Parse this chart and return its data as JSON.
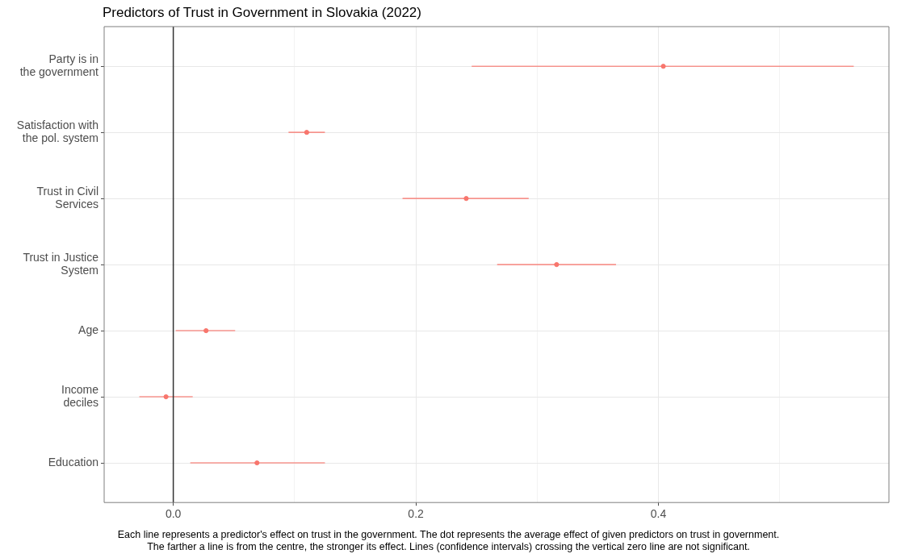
{
  "chart_data": {
    "type": "scatter",
    "title": "Predictors of Trust in Government in Slovakia (2022)",
    "categories": [
      "Party is in\nthe government",
      "Satisfaction with\nthe pol. system",
      "Trust in Civil\nServices",
      "Trust in Justice\nSystem",
      "Age",
      "Income\ndeciles",
      "Education"
    ],
    "series": [
      {
        "color": "#f8766d",
        "values": [
          0.404,
          0.11,
          0.2415,
          0.316,
          0.027,
          -0.006,
          0.069
        ],
        "errors": [
          [
            0.246,
            0.561
          ],
          [
            0.095,
            0.125
          ],
          [
            0.189,
            0.293
          ],
          [
            0.267,
            0.365
          ],
          [
            0.002,
            0.051
          ],
          [
            -0.028,
            0.016
          ],
          [
            0.014,
            0.125
          ]
        ]
      }
    ],
    "orientation": "horizontal",
    "xlim": [
      -0.057,
      0.59
    ],
    "xticks": [
      {
        "value": 0,
        "label": "0.0"
      },
      {
        "value": 0.1,
        "label": null
      },
      {
        "value": 0.2,
        "label": "0.2"
      },
      {
        "value": 0.3,
        "label": null
      },
      {
        "value": 0.4,
        "label": "0.4"
      },
      {
        "value": 0.5,
        "label": null
      }
    ],
    "ref_lines": [
      {
        "axis": "x",
        "value": 0,
        "color": "#333333"
      }
    ],
    "grid": true,
    "legend": false,
    "marker": "circle",
    "annotations": [
      "Each line represents a predictor's effect on trust in the government. The dot represents the average effect of given predictors on trust in government.\nThe farther a line is from the centre, the stronger its effect. Lines (confidence intervals) crossing the vertical zero line are not significant."
    ]
  }
}
